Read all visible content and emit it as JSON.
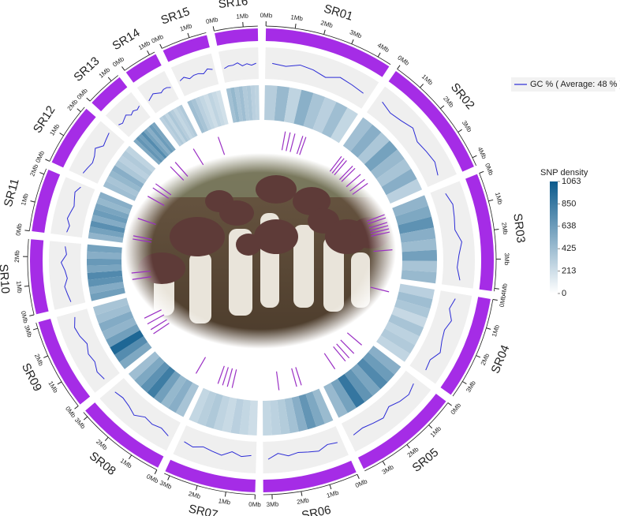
{
  "chart_data": {
    "type": "circos",
    "gc_legend": "GC % ( Average: 48 % )",
    "gc_color": "#2b2bd6",
    "gc_lim": [
      40,
      56
    ],
    "ideogram_color": "#a52ce6",
    "feature_color": "#9a2fc4",
    "snp_title": "SNP density",
    "snp_lim": [
      0,
      1063
    ],
    "snp_ticks": [
      1063,
      850,
      638,
      425,
      213,
      0
    ],
    "snp_colors": [
      "#ffffff",
      "#0b5a8c"
    ],
    "chromosomes": [
      {
        "name": "SR01",
        "length": 4.5,
        "ticks": [
          {
            "value": 0,
            "label": "0Mb"
          },
          {
            "value": 1,
            "label": "1Mb"
          },
          {
            "value": 2,
            "label": "2Mb"
          },
          {
            "value": 3,
            "label": "3Mb"
          },
          {
            "value": 4,
            "label": "4Mb"
          }
        ],
        "gc": [
          48,
          47,
          49,
          48,
          46,
          49,
          48,
          47
        ],
        "snp": [
          320,
          450,
          280,
          510,
          380,
          300,
          420,
          260
        ],
        "features": [
          1.3,
          1.6,
          1.9,
          2.4,
          2.6
        ]
      },
      {
        "name": "SR02",
        "length": 4.3,
        "ticks": [
          {
            "value": 0,
            "label": "0Mb"
          },
          {
            "value": 1,
            "label": "1Mb"
          },
          {
            "value": 2,
            "label": "2Mb"
          },
          {
            "value": 3,
            "label": "3Mb"
          },
          {
            "value": 4,
            "label": "4Mb"
          }
        ],
        "gc": [
          49,
          47,
          48,
          50,
          47,
          48,
          49,
          47
        ],
        "snp": [
          410,
          520,
          360,
          600,
          450,
          380,
          520,
          300
        ],
        "features": [
          0.3,
          0.5,
          0.7,
          1.2,
          1.4,
          1.9,
          2.3,
          2.6
        ]
      },
      {
        "name": "SR03",
        "length": 4.1,
        "ticks": [
          {
            "value": 0,
            "label": "0Mb"
          },
          {
            "value": 1,
            "label": "1Mb"
          },
          {
            "value": 2,
            "label": "2Mb"
          },
          {
            "value": 3,
            "label": "3Mb"
          },
          {
            "value": 4,
            "label": "4Mb"
          }
        ],
        "gc": [
          47,
          49,
          48,
          47,
          50,
          48,
          47,
          49
        ],
        "snp": [
          480,
          560,
          700,
          520,
          430,
          610,
          380,
          450
        ],
        "features": [
          0.2,
          0.4,
          0.7,
          0.9,
          1.1,
          1.3,
          2.4
        ]
      },
      {
        "name": "SR04",
        "length": 3.6,
        "ticks": [
          {
            "value": 0,
            "label": "0Mb"
          },
          {
            "value": 1,
            "label": "1Mb"
          },
          {
            "value": 2,
            "label": "2Mb"
          },
          {
            "value": 3,
            "label": "3Mb"
          }
        ],
        "gc": [
          48,
          46,
          49,
          47,
          48,
          50,
          47,
          48
        ],
        "snp": [
          300,
          420,
          360,
          250,
          380,
          290,
          340,
          270
        ],
        "features": [
          0.6
        ]
      },
      {
        "name": "SR05",
        "length": 3.7,
        "ticks": [
          {
            "value": 0,
            "label": "0Mb"
          },
          {
            "value": 1,
            "label": "1Mb"
          },
          {
            "value": 2,
            "label": "2Mb"
          },
          {
            "value": 3,
            "label": "3Mb"
          }
        ],
        "gc": [
          47,
          49,
          48,
          46,
          49,
          48,
          47,
          48
        ],
        "snp": [
          520,
          640,
          760,
          580,
          690,
          880,
          600,
          450
        ],
        "features": [
          0.4,
          1.1,
          1.5,
          1.8,
          2.6
        ]
      },
      {
        "name": "SR06",
        "length": 3.3,
        "ticks": [
          {
            "value": 0,
            "label": "0Mb"
          },
          {
            "value": 1,
            "label": "1Mb"
          },
          {
            "value": 2,
            "label": "2Mb"
          },
          {
            "value": 3,
            "label": "3Mb"
          }
        ],
        "gc": [
          48,
          47,
          49,
          48,
          47,
          48,
          46,
          49
        ],
        "snp": [
          440,
          560,
          680,
          520,
          400,
          330,
          290,
          260
        ],
        "features": [
          0.9,
          1.2,
          2.3
        ]
      },
      {
        "name": "SR07",
        "length": 3.2,
        "ticks": [
          {
            "value": 0,
            "label": "0Mb"
          },
          {
            "value": 1,
            "label": "1Mb"
          },
          {
            "value": 2,
            "label": "2Mb"
          },
          {
            "value": 3,
            "label": "3Mb"
          }
        ],
        "gc": [
          47,
          48,
          46,
          49,
          48,
          47,
          49,
          48
        ],
        "snp": [
          220,
          260,
          300,
          240,
          280,
          350,
          310,
          260
        ],
        "features": [
          1.6,
          1.9,
          2.2,
          2.5
        ]
      },
      {
        "name": "SR08",
        "length": 3.2,
        "ticks": [
          {
            "value": 0,
            "label": "0Mb"
          },
          {
            "value": 1,
            "label": "1Mb"
          },
          {
            "value": 2,
            "label": "2Mb"
          },
          {
            "value": 3,
            "label": "3Mb"
          }
        ],
        "gc": [
          49,
          47,
          48,
          47,
          50,
          48,
          47,
          48
        ],
        "snp": [
          380,
          520,
          460,
          620,
          840,
          700,
          560,
          420
        ],
        "features": [
          0.5
        ]
      },
      {
        "name": "SR09",
        "length": 3.2,
        "ticks": [
          {
            "value": 0,
            "label": "0Mb"
          },
          {
            "value": 1,
            "label": "1Mb"
          },
          {
            "value": 2,
            "label": "2Mb"
          },
          {
            "value": 3,
            "label": "3Mb"
          }
        ],
        "gc": [
          48,
          49,
          47,
          48,
          46,
          48,
          49,
          47
        ],
        "snp": [
          560,
          740,
          980,
          620,
          480,
          540,
          420,
          380
        ],
        "features": [
          0.6,
          0.9,
          1.3,
          1.7
        ]
      },
      {
        "name": "SR10",
        "length": 2.6,
        "ticks": [
          {
            "value": 0,
            "label": "0Mb"
          },
          {
            "value": 1,
            "label": "1Mb"
          },
          {
            "value": 2,
            "label": "2Mb"
          }
        ],
        "gc": [
          47,
          48,
          49,
          47,
          48,
          50,
          47,
          48
        ],
        "snp": [
          620,
          540,
          700,
          760,
          580,
          660,
          520,
          600
        ],
        "features": [
          0.7,
          1.1
        ]
      },
      {
        "name": "SR11",
        "length": 2.2,
        "ticks": [
          {
            "value": 0,
            "label": "0Mb"
          },
          {
            "value": 1,
            "label": "1Mb"
          },
          {
            "value": 2,
            "label": "2Mb"
          }
        ],
        "gc": [
          48,
          47,
          49,
          48,
          47,
          48,
          49,
          47
        ],
        "snp": [
          480,
          600,
          720,
          540,
          640,
          580,
          460,
          520
        ],
        "features": [
          0.3,
          0.5,
          1.6
        ]
      },
      {
        "name": "SR12",
        "length": 2.2,
        "ticks": [
          {
            "value": 0,
            "label": "0Mb"
          },
          {
            "value": 1,
            "label": "1Mb"
          },
          {
            "value": 2,
            "label": "2Mb"
          }
        ],
        "gc": [
          49,
          48,
          47,
          48,
          50,
          47,
          48,
          49
        ],
        "snp": [
          420,
          380,
          460,
          520,
          360,
          300,
          340,
          280
        ],
        "features": [
          0.6,
          1.2,
          1.5
        ]
      },
      {
        "name": "SR13",
        "length": 1.3,
        "ticks": [
          {
            "value": 0,
            "label": "0Mb"
          },
          {
            "value": 1,
            "label": "1Mb"
          }
        ],
        "gc": [
          48,
          47,
          48,
          49,
          47,
          48,
          47,
          48
        ],
        "snp": [
          560,
          680,
          620,
          740,
          600,
          520,
          640,
          580
        ],
        "features": [
          0.4,
          0.8
        ]
      },
      {
        "name": "SR14",
        "length": 1.2,
        "ticks": [
          {
            "value": 0,
            "label": "0Mb"
          },
          {
            "value": 1,
            "label": "1Mb"
          }
        ],
        "gc": [
          47,
          48,
          49,
          48,
          47,
          48,
          48,
          47
        ],
        "snp": [
          300,
          340,
          280,
          360,
          320,
          260,
          300,
          340
        ],
        "features": [
          0.6
        ]
      },
      {
        "name": "SR15",
        "length": 1.6,
        "ticks": [
          {
            "value": 0,
            "label": "0Mb"
          },
          {
            "value": 1,
            "label": "1Mb"
          }
        ],
        "gc": [
          48,
          49,
          47,
          48,
          48,
          47,
          49,
          48
        ],
        "snp": [
          420,
          380,
          300,
          260,
          220,
          280,
          240,
          200
        ],
        "features": [
          0.8
        ]
      },
      {
        "name": "SR16",
        "length": 1.5,
        "ticks": [
          {
            "value": 0,
            "label": "0Mb"
          },
          {
            "value": 1,
            "label": "1Mb"
          }
        ],
        "gc": [
          47,
          48,
          48,
          49,
          47,
          48,
          47,
          48
        ],
        "snp": [
          400,
          460,
          380,
          420,
          340,
          360,
          300,
          280
        ],
        "features": []
      }
    ]
  }
}
